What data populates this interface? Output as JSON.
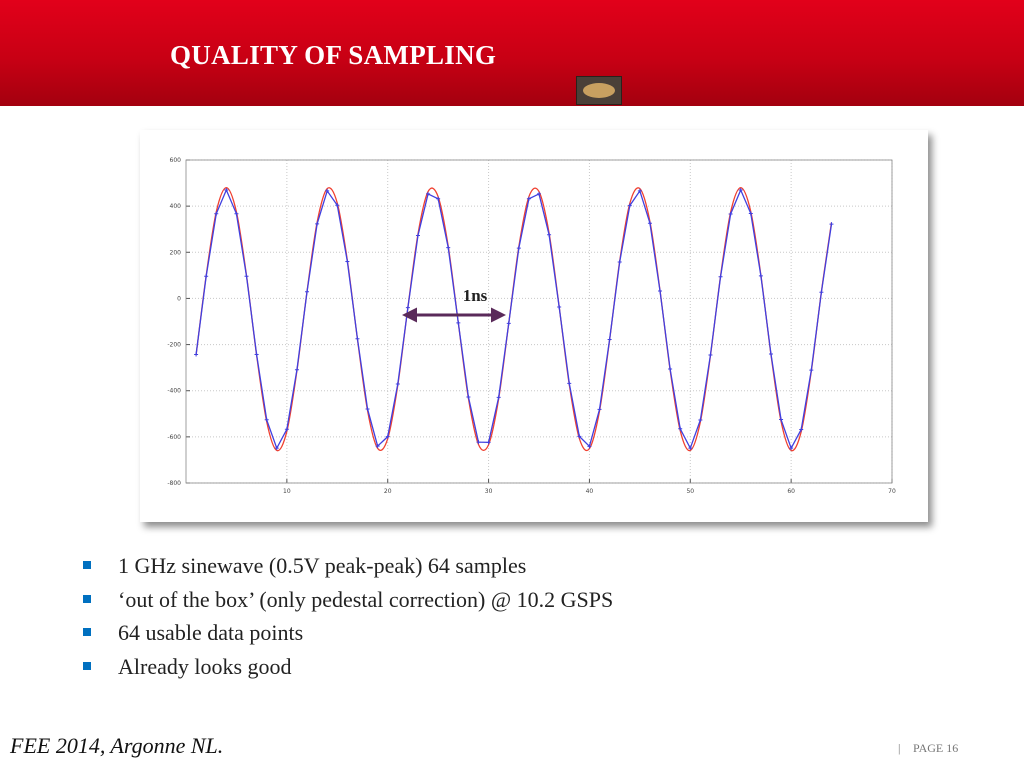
{
  "slide": {
    "title": "QUALITY OF SAMPLING",
    "bullets": [
      "1 GHz sinewave  (0.5V peak-peak) 64 samples",
      "‘out of the box’ (only pedestal correction) @ 10.2 GSPS",
      "64 usable data points",
      "Already looks good"
    ],
    "footer": "FEE 2014, Argonne NL.",
    "separator": "|",
    "page": "PAGE 16"
  },
  "chart_data": {
    "type": "line",
    "annotation": "1ns",
    "x": [
      1,
      2,
      3,
      4,
      5,
      6,
      7,
      8,
      9,
      10,
      11,
      12,
      13,
      14,
      15,
      16,
      17,
      18,
      19,
      20,
      21,
      22,
      23,
      24,
      25,
      26,
      27,
      28,
      29,
      30,
      31,
      32,
      33,
      34,
      35,
      36,
      37,
      38,
      39,
      40,
      41,
      42,
      43,
      44,
      45,
      46,
      47,
      48,
      49,
      50,
      51,
      52,
      53,
      54,
      55,
      56,
      57,
      58,
      59,
      60,
      61,
      62,
      63,
      64
    ],
    "series": [
      {
        "color": "#4040e0",
        "markers": true,
        "values": [
          -243,
          96,
          367,
          470,
          367,
          96,
          -243,
          -526,
          -649,
          -567,
          -309,
          29,
          323,
          466,
          404,
          160,
          -175,
          -479,
          -640,
          -599,
          -371,
          -40,
          273,
          453,
          432,
          220,
          -106,
          -427,
          -623,
          -624,
          -429,
          -108,
          218,
          432,
          453,
          276,
          -37,
          -368,
          -598,
          -641,
          -481,
          -178,
          158,
          402,
          466,
          326,
          32,
          -306,
          -565,
          -649,
          -527,
          -245,
          94,
          366,
          470,
          368,
          98,
          -241,
          -525,
          -649,
          -568,
          -311,
          27,
          322
        ]
      },
      {
        "color": "#f04030",
        "smooth": true,
        "values": [
          -246,
          99,
          375,
          480,
          375,
          99,
          -246,
          -534,
          -659,
          -576,
          -313,
          31,
          330,
          476,
          413,
          164,
          -177,
          -486,
          -650,
          -608,
          -376,
          -39,
          279,
          463,
          441,
          226,
          -106,
          -433,
          -633,
          -634,
          -435,
          -108,
          224,
          441,
          463,
          283,
          -36,
          -373,
          -607,
          -651,
          -488,
          -180,
          162,
          411,
          476,
          333,
          34,
          -310,
          -573,
          -659,
          -535,
          -248,
          97,
          374,
          480,
          376,
          101,
          -244,
          -533,
          -659,
          -577,
          -315,
          29,
          329
        ]
      }
    ],
    "xlim": [
      0,
      70
    ],
    "xticks": [
      10,
      20,
      30,
      40,
      50,
      60,
      70
    ],
    "ylim": [
      -800,
      600
    ],
    "yticks": [
      -800,
      -600,
      -400,
      -200,
      0,
      200,
      400,
      600
    ],
    "grid": true
  }
}
